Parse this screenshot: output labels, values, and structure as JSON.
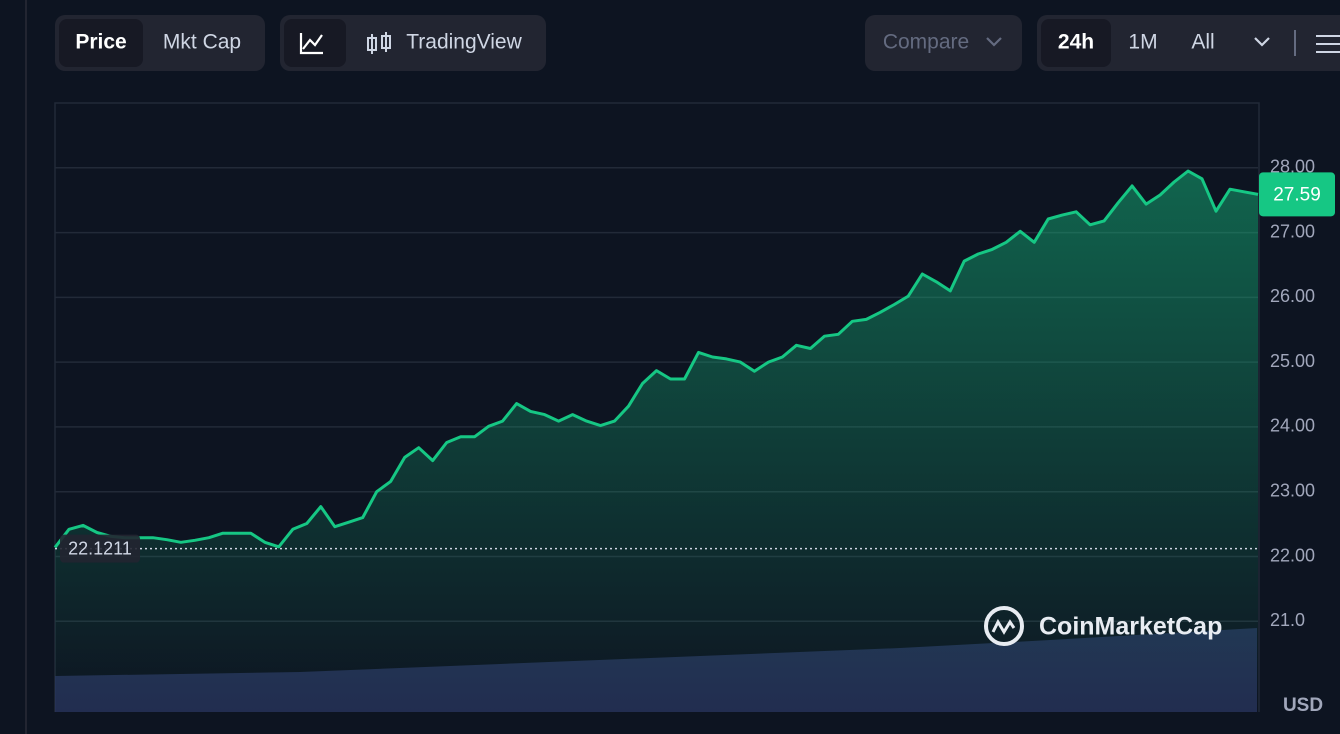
{
  "toolbar": {
    "tabs": [
      "Price",
      "Mkt Cap"
    ],
    "chart_mode": "TradingView",
    "compare": "Compare",
    "ranges": [
      "24h",
      "1M",
      "All"
    ]
  },
  "chart_data": {
    "type": "line",
    "series": [
      {
        "name": "Price",
        "color": "#16c784",
        "values": [
          22.14,
          22.42,
          22.48,
          22.37,
          22.31,
          22.29,
          22.29,
          22.29,
          22.26,
          22.22,
          22.25,
          22.29,
          22.36,
          22.36,
          22.36,
          22.22,
          22.15,
          22.42,
          22.51,
          22.77,
          22.46,
          22.53,
          22.6,
          23.0,
          23.16,
          23.53,
          23.68,
          23.48,
          23.76,
          23.85,
          23.85,
          24.01,
          24.09,
          24.36,
          24.24,
          24.19,
          24.09,
          24.19,
          24.09,
          24.02,
          24.09,
          24.32,
          24.67,
          24.87,
          24.74,
          24.74,
          25.15,
          25.08,
          25.05,
          25.0,
          24.86,
          25.0,
          25.08,
          25.26,
          25.21,
          25.4,
          25.43,
          25.63,
          25.66,
          25.77,
          25.89,
          26.02,
          26.36,
          26.24,
          26.1,
          26.56,
          26.67,
          26.74,
          26.85,
          27.02,
          26.85,
          27.21,
          27.27,
          27.32,
          27.12,
          27.18,
          27.46,
          27.72,
          27.44,
          27.58,
          27.78,
          27.95,
          27.83,
          27.33,
          27.67,
          27.63,
          27.59
        ]
      }
    ],
    "ylim": [
      19.6,
      29.0
    ],
    "yticks": [
      {
        "value": 21,
        "label": "21.0"
      },
      {
        "value": 22,
        "label": "22.00"
      },
      {
        "value": 23,
        "label": "23.00"
      },
      {
        "value": 24,
        "label": "24.00"
      },
      {
        "value": 25,
        "label": "25.00"
      },
      {
        "value": 26,
        "label": "26.00"
      },
      {
        "value": 27,
        "label": "27.00"
      },
      {
        "value": 28,
        "label": "28.00"
      }
    ],
    "grid": true,
    "current_price": {
      "value": 27.59,
      "label": "27.59"
    },
    "open_price": {
      "value": 22.1211,
      "label": "22.1211"
    },
    "watermark": "CoinMarketCap",
    "unit": "USD"
  }
}
